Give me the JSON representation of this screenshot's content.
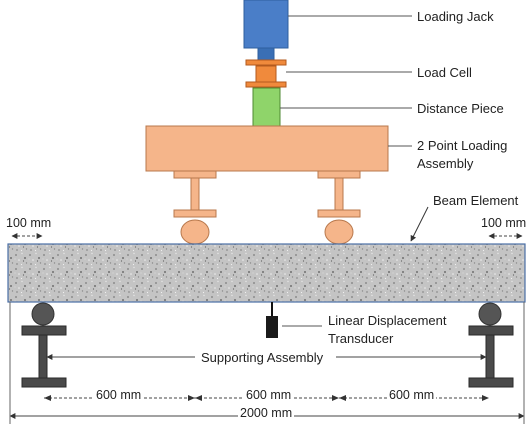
{
  "labels": {
    "loading_jack": "Loading Jack",
    "load_cell": "Load Cell",
    "distance_piece": "Distance Piece",
    "loading_assembly_line1": "2 Point Loading",
    "loading_assembly_line2": "Assembly",
    "beam_element": "Beam Element",
    "ldt_line1": "Linear Displacement",
    "ldt_line2": "Transducer",
    "supporting_assembly": "Supporting Assembly"
  },
  "dimensions": {
    "overhang_left": "100 mm",
    "overhang_right": "100 mm",
    "span_left": "600 mm",
    "span_middle": "600 mm",
    "span_right": "600 mm",
    "total": "2000 mm"
  },
  "colors": {
    "jack": "#4a7ec8",
    "jack_stem": "#3a6fb5",
    "load_cell": "#f08a3c",
    "distance_piece": "#8fd46a",
    "loading_assembly": "#f5b58a",
    "beam": "#bdbdbd",
    "support": "#4a4a4a",
    "ldt": "#1a1a1a"
  }
}
